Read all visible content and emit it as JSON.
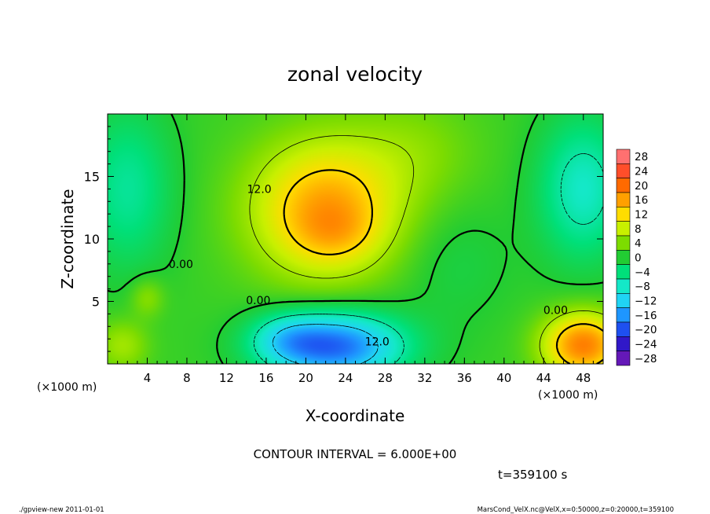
{
  "chart_data": {
    "type": "heatmap",
    "title": "zonal velocity",
    "xlabel": "X-coordinate",
    "ylabel": "Z-coordinate",
    "x_unit": "(×1000 m)",
    "y_unit": "(×1000 m)",
    "xlim": [
      0,
      50
    ],
    "ylim": [
      0,
      20
    ],
    "x_ticks": [
      "4",
      "8",
      "12",
      "16",
      "20",
      "24",
      "28",
      "32",
      "36",
      "40",
      "44",
      "48"
    ],
    "y_ticks": [
      "5",
      "10",
      "15"
    ],
    "x_tick_values": [
      4,
      8,
      12,
      16,
      20,
      24,
      28,
      32,
      36,
      40,
      44,
      48
    ],
    "y_tick_values": [
      5,
      10,
      15
    ],
    "colorbar_labels": [
      "28",
      "24",
      "20",
      "16",
      "12",
      "8",
      "4",
      "0",
      "−4",
      "−8",
      "−12",
      "−16",
      "−20",
      "−24",
      "−28"
    ],
    "colorbar_levels": [
      28,
      24,
      20,
      16,
      12,
      8,
      4,
      0,
      -4,
      -8,
      -12,
      -16,
      -20,
      -24,
      -28
    ],
    "colorbar_colors": [
      "#ff7070",
      "#ff4e2a",
      "#ff6a00",
      "#ffa000",
      "#ffdd00",
      "#c8f000",
      "#7ddc00",
      "#22cc33",
      "#00e07a",
      "#14e8c8",
      "#20d4f4",
      "#1e96ff",
      "#1e50f0",
      "#3018c8",
      "#6418b8"
    ],
    "contour_labels": [
      {
        "text": "12.0",
        "x": 15.3,
        "y": 14.0
      },
      {
        "text": "12.0",
        "x": 27.2,
        "y": 1.8
      },
      {
        "text": "0.00",
        "x": 7.4,
        "y": 8.0
      },
      {
        "text": "0.00",
        "x": 15.2,
        "y": 5.1
      },
      {
        "text": "0.00",
        "x": 45.2,
        "y": 4.3
      }
    ],
    "contour_interval": "CONTOUR INTERVAL = 6.000E+00",
    "time_label": "t=359100 s",
    "blobs": [
      {
        "x": 22,
        "y": 12.4,
        "v": 14.8,
        "sx": 5.2,
        "sy": 3.8
      },
      {
        "x": 23,
        "y": 10.5,
        "v": 3.2,
        "sx": 2.8,
        "sy": 1.6
      },
      {
        "x": 23,
        "y": 1.4,
        "v": -19.5,
        "sx": 4.8,
        "sy": 1.9
      },
      {
        "x": 18,
        "y": 2.0,
        "v": -6.0,
        "sx": 2.6,
        "sy": 1.4
      },
      {
        "x": 48,
        "y": 1.5,
        "v": 17.5,
        "sx": 2.8,
        "sy": 1.8
      },
      {
        "x": 48,
        "y": 14.0,
        "v": -9.0,
        "sx": 3.2,
        "sy": 4.0
      },
      {
        "x": 2,
        "y": 14.0,
        "v": -6.5,
        "sx": 3.2,
        "sy": 4.5
      },
      {
        "x": 4,
        "y": 5.3,
        "v": 4.0,
        "sx": 1.2,
        "sy": 1.1
      },
      {
        "x": 31,
        "y": 17.0,
        "v": 3.0,
        "sx": 4.5,
        "sy": 3.0
      },
      {
        "x": 1.5,
        "y": 1.5,
        "v": 5.0,
        "sx": 1.8,
        "sy": 1.4
      },
      {
        "x": 35,
        "y": 8.0,
        "v": -2.0,
        "sx": 4.0,
        "sy": 3.5
      }
    ],
    "base_value": 1.0,
    "grid": false,
    "legend": "right"
  },
  "footer": {
    "left": "./gpview-new 2011-01-01",
    "right": "MarsCond_VelX.nc@VelX,x=0:50000,z=0:20000,t=359100"
  }
}
